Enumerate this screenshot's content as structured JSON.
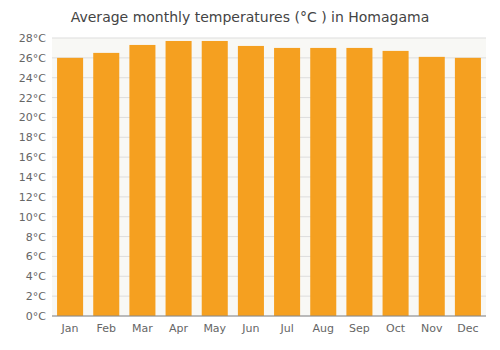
{
  "chart_data": {
    "type": "bar",
    "title": "Average monthly temperatures (°C ) in Homagama",
    "categories": [
      "Jan",
      "Feb",
      "Mar",
      "Apr",
      "May",
      "Jun",
      "Jul",
      "Aug",
      "Sep",
      "Oct",
      "Nov",
      "Dec"
    ],
    "values": [
      26.0,
      26.5,
      27.3,
      27.7,
      27.7,
      27.2,
      27.0,
      27.0,
      27.0,
      26.7,
      26.1,
      26.0
    ],
    "color": "#F5A020",
    "ylim": [
      0,
      28
    ],
    "yticks": [
      {
        "value": 0,
        "label": "0°C"
      },
      {
        "value": 2,
        "label": "2°C"
      },
      {
        "value": 4,
        "label": "4°C"
      },
      {
        "value": 6,
        "label": "6°C"
      },
      {
        "value": 8,
        "label": "8°C"
      },
      {
        "value": 10,
        "label": "10°C"
      },
      {
        "value": 12,
        "label": "12°C"
      },
      {
        "value": 14,
        "label": "14°C"
      },
      {
        "value": 16,
        "label": "16°C"
      },
      {
        "value": 18,
        "label": "18°C"
      },
      {
        "value": 20,
        "label": "20°C"
      },
      {
        "value": 22,
        "label": "22°C"
      },
      {
        "value": 24,
        "label": "24°C"
      },
      {
        "value": 26,
        "label": "26°C"
      },
      {
        "value": 28,
        "label": "28°C"
      }
    ],
    "grid": true
  }
}
